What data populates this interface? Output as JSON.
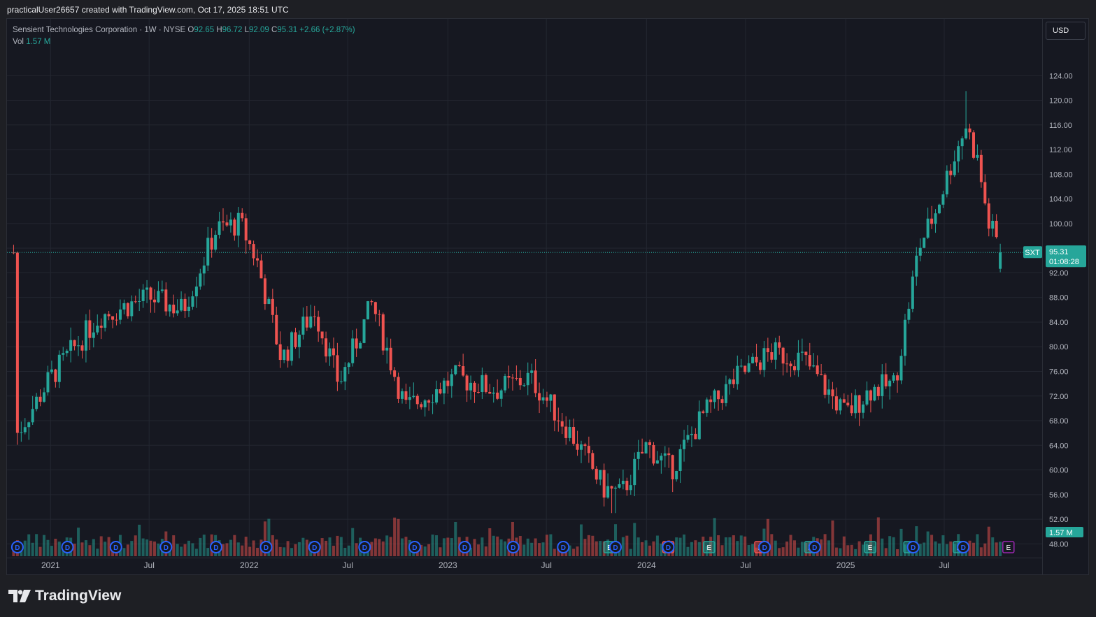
{
  "header": {
    "attribution": "practicalUser26657 created with TradingView.com, Oct 17, 2025 18:51 UTC"
  },
  "legend": {
    "symbol_line": "Sensient Technologies Corporation · 1W · NYSE",
    "open_label": "O",
    "open": "92.65",
    "high_label": "H",
    "high": "96.72",
    "low_label": "L",
    "low": "92.09",
    "close_label": "C",
    "close": "95.31",
    "change": "+2.66 (+2.87%)",
    "vol_label": "Vol",
    "vol": "1.57 M"
  },
  "currency": "USD",
  "price_tag": {
    "ticker": "SXT",
    "price": "95.31",
    "countdown": "01:08:28"
  },
  "volume_tag": "1.57 M",
  "brand": "TradingView",
  "colors": {
    "up": "#26a69a",
    "down": "#ef5350",
    "background": "#161821",
    "grid": "#232630",
    "dividend": "#2962ff",
    "earnings_up": "#26a69a",
    "earnings_down": "#ef5350",
    "earnings_next": "#9c27b0"
  },
  "chart_data": {
    "type": "candlestick",
    "title": "Sensient Technologies Corporation · 1W · NYSE",
    "interval": "1W",
    "ylim": [
      46,
      128
    ],
    "y_ticks": [
      "124.00",
      "120.00",
      "116.00",
      "112.00",
      "108.00",
      "104.00",
      "100.00",
      "96.00",
      "92.00",
      "88.00",
      "84.00",
      "80.00",
      "76.00",
      "72.00",
      "68.00",
      "64.00",
      "60.00",
      "56.00",
      "52.00",
      "48.00"
    ],
    "x_ticks": [
      "2021",
      "Jul",
      "2022",
      "Jul",
      "2023",
      "Jul",
      "2024",
      "Jul",
      "2025",
      "Jul"
    ],
    "x_tick_dates": [
      "2021-01-01",
      "2021-07-01",
      "2022-01-01",
      "2022-07-01",
      "2023-01-01",
      "2023-07-01",
      "2024-01-01",
      "2024-07-01",
      "2025-01-01",
      "2025-07-01"
    ],
    "last_price": 95.31,
    "key_points": [
      {
        "date": "2020-11-01",
        "price": 66
      },
      {
        "date": "2021-01-01",
        "price": 75
      },
      {
        "date": "2021-04-01",
        "price": 85
      },
      {
        "date": "2021-07-01",
        "price": 88
      },
      {
        "date": "2021-09-01",
        "price": 86
      },
      {
        "date": "2021-11-01",
        "price": 99
      },
      {
        "date": "2021-12-15",
        "price": 100
      },
      {
        "date": "2022-01-15",
        "price": 94
      },
      {
        "date": "2022-03-01",
        "price": 78
      },
      {
        "date": "2022-05-01",
        "price": 86
      },
      {
        "date": "2022-06-15",
        "price": 74
      },
      {
        "date": "2022-08-15",
        "price": 87
      },
      {
        "date": "2022-10-15",
        "price": 70
      },
      {
        "date": "2023-01-15",
        "price": 75
      },
      {
        "date": "2023-04-01",
        "price": 73
      },
      {
        "date": "2023-06-01",
        "price": 75
      },
      {
        "date": "2023-08-15",
        "price": 66
      },
      {
        "date": "2023-10-15",
        "price": 57
      },
      {
        "date": "2023-11-15",
        "price": 56
      },
      {
        "date": "2024-01-01",
        "price": 64
      },
      {
        "date": "2024-02-15",
        "price": 60
      },
      {
        "date": "2024-04-15",
        "price": 69
      },
      {
        "date": "2024-06-15",
        "price": 75
      },
      {
        "date": "2024-08-15",
        "price": 79
      },
      {
        "date": "2024-10-15",
        "price": 78
      },
      {
        "date": "2025-01-01",
        "price": 69
      },
      {
        "date": "2025-02-15",
        "price": 73
      },
      {
        "date": "2025-04-01",
        "price": 74
      },
      {
        "date": "2025-05-15",
        "price": 96
      },
      {
        "date": "2025-06-15",
        "price": 102
      },
      {
        "date": "2025-07-15",
        "price": 110
      },
      {
        "date": "2025-08-10",
        "price": 116
      },
      {
        "date": "2025-09-01",
        "price": 110
      },
      {
        "date": "2025-09-20",
        "price": 100
      },
      {
        "date": "2025-10-17",
        "price": 95.31
      }
    ],
    "high_point": {
      "date": "2025-08-10",
      "price": 121.5
    },
    "low_point": {
      "date": "2023-11-01",
      "price": 53
    },
    "volume_last": "1.57 M",
    "event_markers": [
      {
        "type": "D",
        "date": "2020-11-01"
      },
      {
        "type": "D",
        "date": "2021-02-01"
      },
      {
        "type": "D",
        "date": "2021-05-01"
      },
      {
        "type": "D",
        "date": "2021-08-01"
      },
      {
        "type": "D",
        "date": "2021-11-01"
      },
      {
        "type": "D",
        "date": "2022-02-01"
      },
      {
        "type": "D",
        "date": "2022-05-01"
      },
      {
        "type": "D",
        "date": "2022-08-01"
      },
      {
        "type": "D",
        "date": "2022-11-01"
      },
      {
        "type": "D",
        "date": "2023-02-01"
      },
      {
        "type": "D",
        "date": "2023-05-01"
      },
      {
        "type": "D",
        "date": "2023-08-01"
      },
      {
        "type": "E",
        "date": "2023-10-25",
        "result": "up"
      },
      {
        "type": "D",
        "date": "2023-11-05"
      },
      {
        "type": "E",
        "date": "2024-02-10",
        "result": "down"
      },
      {
        "type": "D",
        "date": "2024-02-10"
      },
      {
        "type": "E",
        "date": "2024-04-25",
        "result": "up"
      },
      {
        "type": "E",
        "date": "2024-07-28",
        "result": "down"
      },
      {
        "type": "D",
        "date": "2024-08-05"
      },
      {
        "type": "E",
        "date": "2024-10-28",
        "result": "up"
      },
      {
        "type": "D",
        "date": "2024-11-05"
      },
      {
        "type": "E",
        "date": "2025-02-15",
        "result": "up"
      },
      {
        "type": "E",
        "date": "2025-04-28",
        "result": "up"
      },
      {
        "type": "D",
        "date": "2025-05-05"
      },
      {
        "type": "E",
        "date": "2025-07-28",
        "result": "up"
      },
      {
        "type": "D",
        "date": "2025-08-05"
      },
      {
        "type": "E",
        "date": "2025-10-27",
        "result": "upcoming"
      }
    ]
  }
}
